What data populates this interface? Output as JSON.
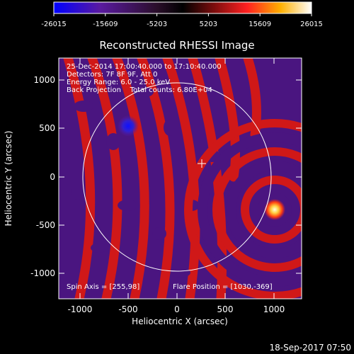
{
  "colorbar": {
    "ticks": [
      "-26015",
      "-15609",
      "-5203",
      "5203",
      "15609",
      "26015"
    ],
    "stops": [
      "#0000ff",
      "#5a1aa0",
      "#2a0e2a",
      "#000000",
      "#7a0d0d",
      "#ff2020",
      "#ffb000",
      "#ffffff"
    ]
  },
  "plot": {
    "title": "Reconstructed RHESSI Image",
    "xlabel": "Heliocentric X (arcsec)",
    "ylabel": "Heliocentric Y (arcsec)",
    "xticks": [
      "-1000",
      "-500",
      "0",
      "500",
      "1000"
    ],
    "yticks": [
      "1000",
      "500",
      "0",
      "-500",
      "-1000"
    ],
    "info": [
      "25-Dec-2014 17:00:40.000 to 17:10:40.000",
      "Detectors: 7F 8F 9F, Att 0",
      "Energy Range: 6.0 - 25.0 keV",
      "Back Projection    Total counts: 6.80E+04"
    ],
    "spin_axis": "Spin Axis = [255,98]",
    "flare_position": "Flare Position = [1030,-369]",
    "colors": {
      "fringe_red": "#d01818",
      "fringe_purple": "#4a1580",
      "source_hot": "#ffff80",
      "source_cold": "#2020ff"
    }
  },
  "footer": {
    "timestamp": "18-Sep-2017 07:50"
  }
}
